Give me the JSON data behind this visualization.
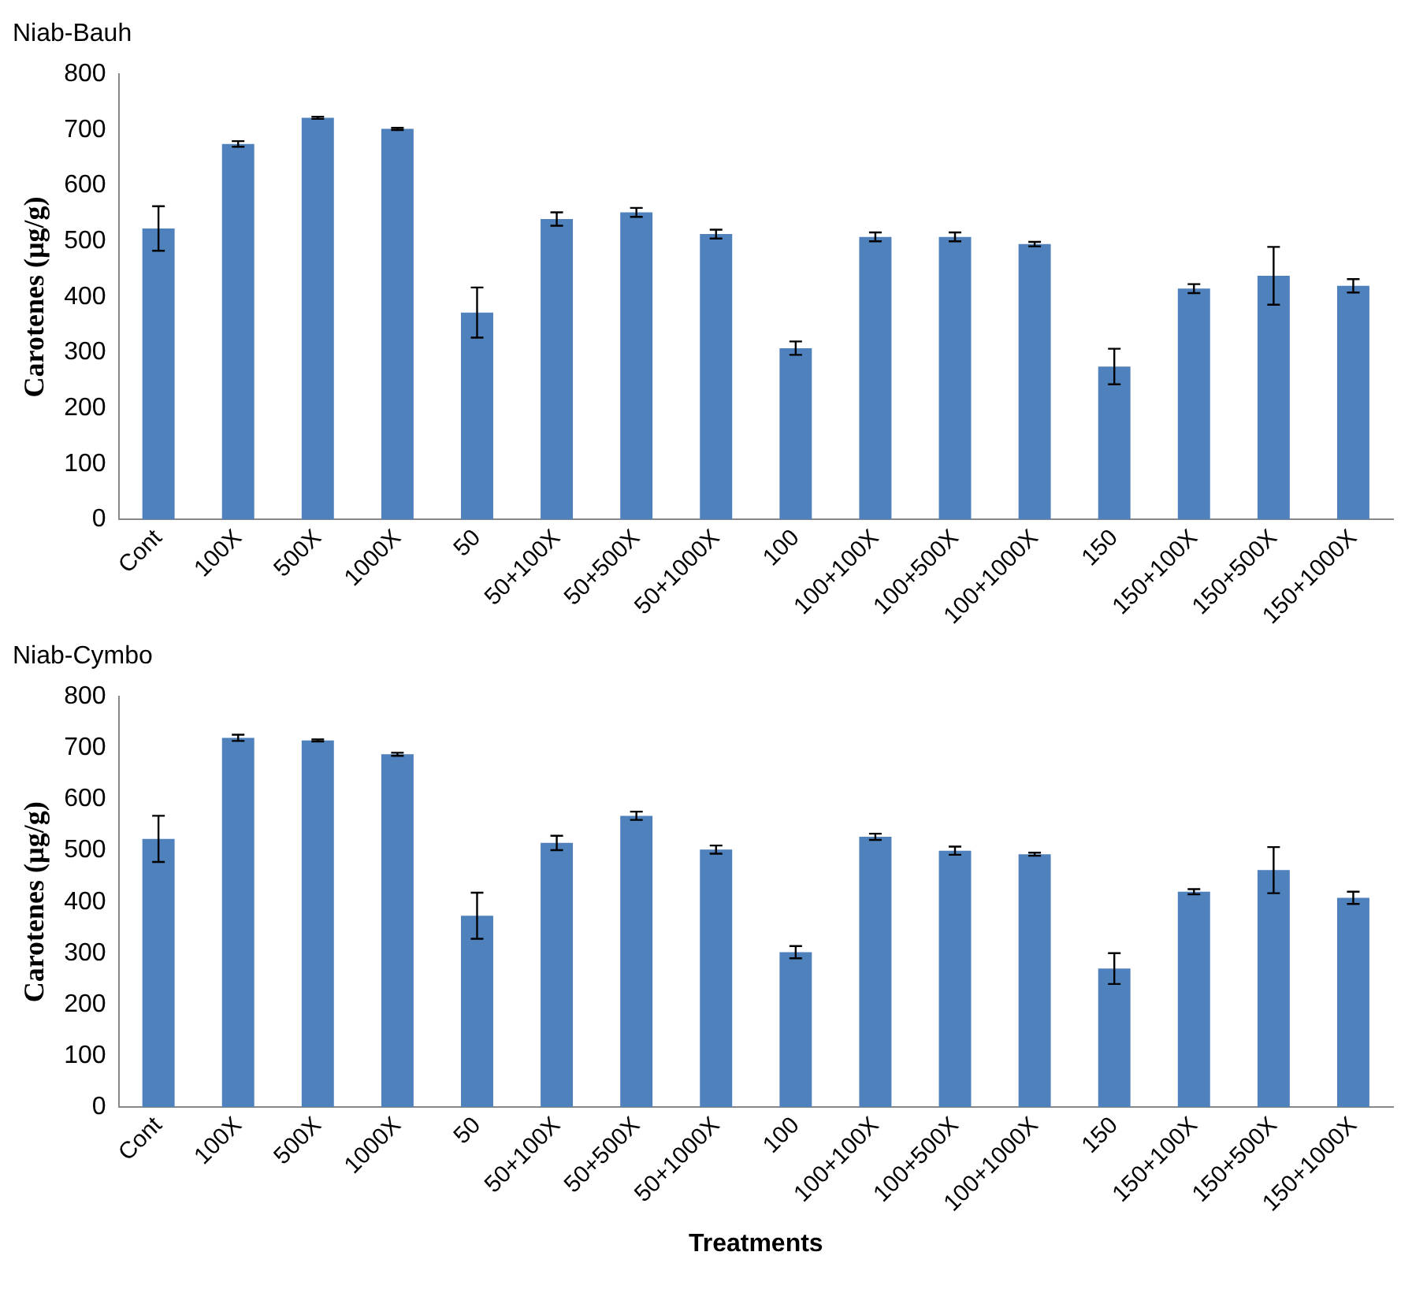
{
  "chart_data": [
    {
      "type": "bar",
      "title": "Niab-Bauh",
      "ylabel": "Carotenes (µg/g)",
      "categories": [
        "Cont",
        "100X",
        "500X",
        "1000X",
        "50",
        "50+100X",
        "50+500X",
        "50+1000X",
        "100",
        "100+100X",
        "100+500X",
        "100+1000X",
        "150",
        "150+100X",
        "150+500X",
        "150+1000X"
      ],
      "series": [
        {
          "color": "#4f81bd",
          "values": [
            523,
            675,
            722,
            702,
            372,
            540,
            552,
            513,
            308,
            508,
            508,
            495,
            275,
            415,
            438,
            420
          ],
          "errors": [
            40,
            5,
            2,
            2,
            45,
            12,
            8,
            8,
            12,
            8,
            8,
            4,
            32,
            8,
            52,
            12
          ]
        }
      ],
      "ylim": [
        0,
        800
      ],
      "yticks": [
        0,
        100,
        200,
        300,
        400,
        500,
        600,
        700,
        800
      ],
      "grid": false,
      "legend": false
    },
    {
      "type": "bar",
      "title": "Niab-Cymbo",
      "xlabel": "Treatments",
      "ylabel": "Carotenes (µg/g)",
      "categories": [
        "Cont",
        "100X",
        "500X",
        "1000X",
        "50",
        "50+100X",
        "50+500X",
        "50+1000X",
        "100",
        "100+100X",
        "100+500X",
        "100+1000X",
        "150",
        "150+100X",
        "150+500X",
        "150+1000X"
      ],
      "series": [
        {
          "color": "#4f81bd",
          "values": [
            523,
            720,
            715,
            688,
            373,
            515,
            568,
            502,
            302,
            527,
            500,
            493,
            270,
            420,
            462,
            408
          ],
          "errors": [
            45,
            6,
            2,
            3,
            45,
            14,
            8,
            8,
            12,
            6,
            8,
            3,
            30,
            5,
            45,
            12
          ]
        }
      ],
      "ylim": [
        0,
        800
      ],
      "yticks": [
        0,
        100,
        200,
        300,
        400,
        500,
        600,
        700,
        800
      ],
      "grid": false,
      "legend": false
    }
  ]
}
